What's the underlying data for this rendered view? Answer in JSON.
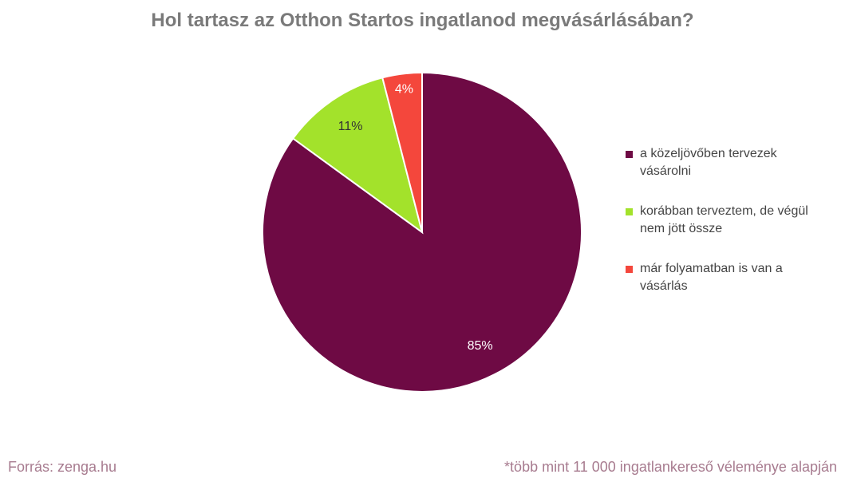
{
  "chart_data": {
    "type": "pie",
    "title": "Hol tartasz az Otthon Startos ingatlanod megvásárlásában?",
    "slices": [
      {
        "name": "a közeljövőben tervezek vásárolni",
        "value": 85,
        "label": "85%",
        "color": "#6e0a44",
        "label_color": "#ffffff"
      },
      {
        "name": "korábban terveztem, de végül nem jött össze",
        "value": 11,
        "label": "11%",
        "color": "#a3e22b",
        "label_color": "#333333"
      },
      {
        "name": "már folyamatban is van a vásárlás",
        "value": 4,
        "label": "4%",
        "color": "#f4473c",
        "label_color": "#ffffff"
      }
    ],
    "legend_position": "right"
  },
  "footer": {
    "source": "Forrás: zenga.hu",
    "note": "*több mint 11 000 ingatlankereső véleménye alapján"
  }
}
